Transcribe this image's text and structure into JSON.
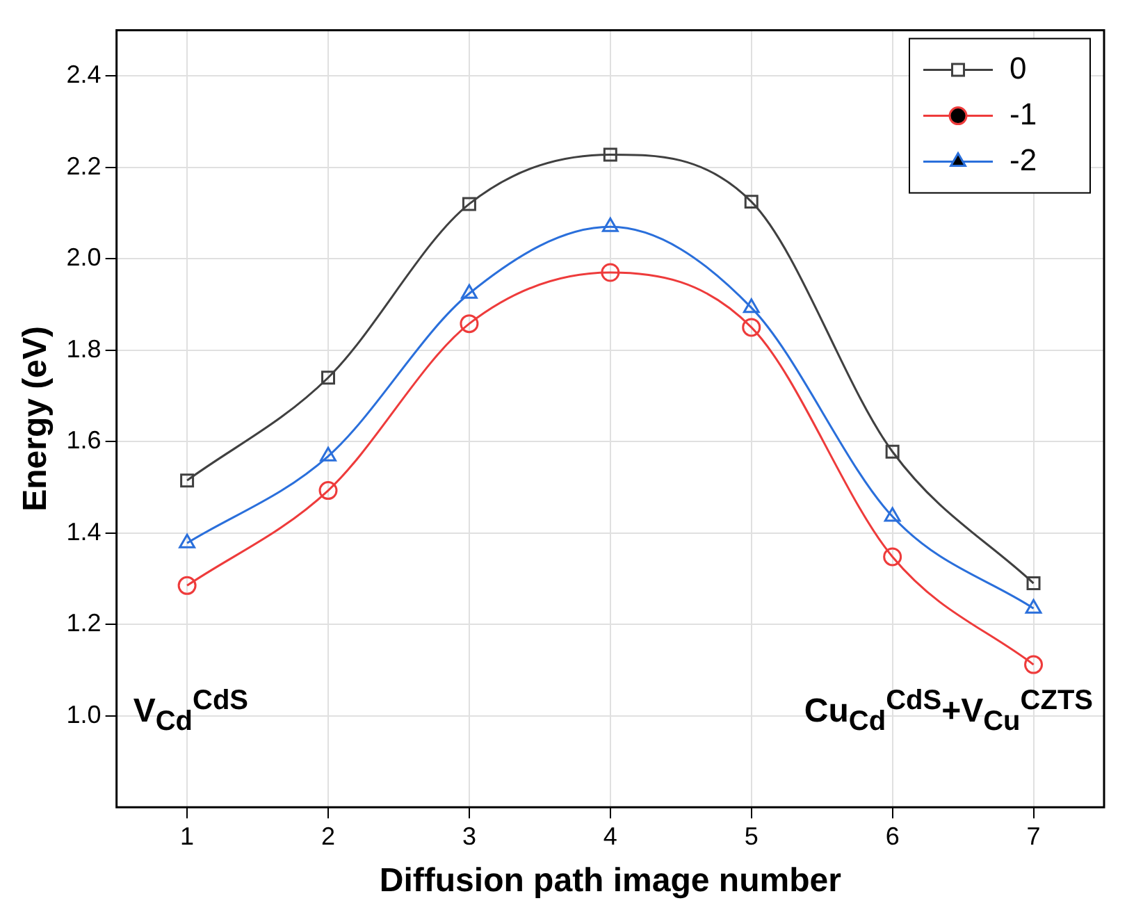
{
  "chart_data": {
    "type": "line",
    "xlabel": "Diffusion path image number",
    "ylabel": "Energy (eV)",
    "x": [
      1,
      2,
      3,
      4,
      5,
      6,
      7
    ],
    "series": [
      {
        "name": "0",
        "color": "#404040",
        "marker": "square",
        "values": [
          1.515,
          1.74,
          2.12,
          2.228,
          2.125,
          1.578,
          1.29
        ]
      },
      {
        "name": "-1",
        "color": "#ee3b3b",
        "marker": "circle",
        "values": [
          1.285,
          1.493,
          1.858,
          1.97,
          1.85,
          1.348,
          1.112
        ]
      },
      {
        "name": "-2",
        "color": "#2a6fdb",
        "marker": "triangle",
        "values": [
          1.378,
          1.568,
          1.924,
          2.07,
          1.893,
          1.436,
          1.235
        ]
      }
    ],
    "xlim": [
      0.5,
      7.5
    ],
    "xticks": [
      1,
      2,
      3,
      4,
      5,
      6,
      7
    ],
    "ylim": [
      0.8,
      2.5
    ],
    "yticks": [
      {
        "value": 1,
        "label": "1.0"
      },
      1.2,
      1.4,
      1.6,
      1.8,
      {
        "value": 2,
        "label": "2.0"
      },
      2.2,
      2.4
    ],
    "grid": true,
    "legend": "top right",
    "line_style": "solid",
    "annotations": [
      "V$_{Cd}$$^{CdS}$",
      "Cu$_{Cd}$$^{CdS}$+V$_{Cu}$$^{CZTS}$"
    ]
  }
}
